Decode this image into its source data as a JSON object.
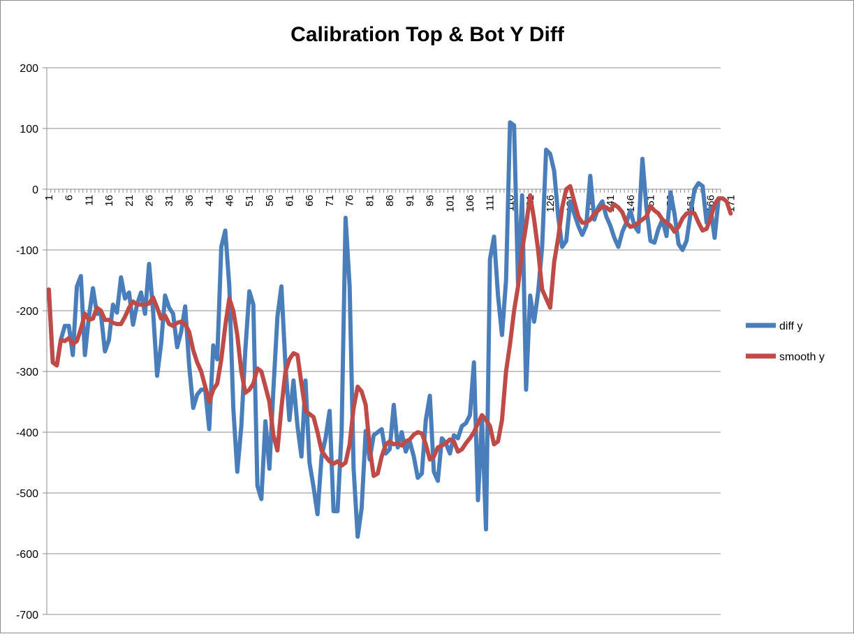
{
  "chart_data": {
    "type": "line",
    "title": "Calibration Top & Bot Y Diff",
    "xlabel": "",
    "ylabel": "",
    "ylim": [
      -700,
      200
    ],
    "ytick_step": 100,
    "grid": "horizontal",
    "legend_position": "right",
    "x_tick_labels": [
      "1",
      "6",
      "11",
      "16",
      "21",
      "26",
      "31",
      "36",
      "41",
      "46",
      "51",
      "56",
      "61",
      "66",
      "71",
      "76",
      "81",
      "86",
      "91",
      "96",
      "101",
      "106",
      "111",
      "116",
      "121",
      "126",
      "131",
      "136",
      "141",
      "146",
      "151",
      "156",
      "161",
      "166",
      "171"
    ],
    "series": [
      {
        "name": "diff y",
        "color": "#4a7ebb",
        "values": [
          -165,
          -285,
          -290,
          -248,
          -225,
          -225,
          -273,
          -160,
          -143,
          -273,
          -210,
          -163,
          -205,
          -205,
          -267,
          -248,
          -190,
          -203,
          -145,
          -180,
          -170,
          -223,
          -190,
          -170,
          -205,
          -123,
          -200,
          -307,
          -255,
          -175,
          -195,
          -205,
          -260,
          -235,
          -193,
          -290,
          -360,
          -338,
          -330,
          -330,
          -395,
          -257,
          -280,
          -95,
          -68,
          -160,
          -360,
          -465,
          -390,
          -265,
          -168,
          -190,
          -488,
          -510,
          -382,
          -460,
          -330,
          -210,
          -160,
          -290,
          -380,
          -315,
          -390,
          -440,
          -315,
          -450,
          -490,
          -535,
          -440,
          -410,
          -365,
          -530,
          -530,
          -400,
          -47,
          -160,
          -460,
          -572,
          -525,
          -398,
          -445,
          -405,
          -400,
          -395,
          -435,
          -428,
          -355,
          -425,
          -400,
          -432,
          -415,
          -440,
          -475,
          -468,
          -380,
          -340,
          -465,
          -480,
          -410,
          -418,
          -435,
          -405,
          -410,
          -390,
          -385,
          -372,
          -285,
          -512,
          -375,
          -560,
          -115,
          -78,
          -175,
          -240,
          -150,
          110,
          105,
          -155,
          -10,
          -330,
          -175,
          -218,
          -170,
          -95,
          65,
          58,
          30,
          -45,
          -95,
          -85,
          -20,
          -40,
          -60,
          -75,
          -60,
          22,
          -50,
          -30,
          -20,
          -45,
          -60,
          -80,
          -95,
          -70,
          -55,
          -35,
          -60,
          -70,
          50,
          -30,
          -85,
          -88,
          -65,
          -50,
          -77,
          -5,
          -40,
          -90,
          -100,
          -85,
          -40,
          0,
          10,
          5,
          -55,
          -30,
          -80,
          -15
        ]
      },
      {
        "name": "smooth y",
        "color": "#be4b48",
        "values": [
          -165,
          -285,
          -290,
          -248,
          -250,
          -245,
          -255,
          -250,
          -230,
          -205,
          -215,
          -213,
          -195,
          -200,
          -215,
          -215,
          -220,
          -222,
          -222,
          -210,
          -195,
          -185,
          -190,
          -190,
          -190,
          -188,
          -178,
          -195,
          -213,
          -208,
          -222,
          -225,
          -220,
          -218,
          -222,
          -235,
          -265,
          -285,
          -300,
          -325,
          -350,
          -330,
          -320,
          -280,
          -225,
          -180,
          -200,
          -240,
          -300,
          -335,
          -330,
          -320,
          -295,
          -300,
          -325,
          -350,
          -405,
          -430,
          -360,
          -300,
          -280,
          -270,
          -273,
          -320,
          -365,
          -370,
          -375,
          -400,
          -430,
          -440,
          -448,
          -452,
          -448,
          -455,
          -450,
          -420,
          -360,
          -325,
          -333,
          -355,
          -425,
          -472,
          -468,
          -440,
          -420,
          -415,
          -420,
          -418,
          -422,
          -415,
          -412,
          -404,
          -400,
          -402,
          -420,
          -445,
          -440,
          -425,
          -422,
          -418,
          -412,
          -415,
          -432,
          -428,
          -418,
          -410,
          -400,
          -385,
          -372,
          -380,
          -390,
          -420,
          -415,
          -380,
          -300,
          -255,
          -200,
          -160,
          -100,
          -60,
          -10,
          -50,
          -100,
          -165,
          -180,
          -195,
          -120,
          -80,
          -30,
          0,
          5,
          -20,
          -45,
          -55,
          -55,
          -50,
          -40,
          -35,
          -28,
          -30,
          -35,
          -25,
          -30,
          -38,
          -55,
          -62,
          -60,
          -55,
          -50,
          -45,
          -28,
          -35,
          -40,
          -50,
          -55,
          -60,
          -70,
          -62,
          -48,
          -40,
          -38,
          -40,
          -55,
          -68,
          -65,
          -48,
          -25,
          -15,
          -15,
          -20,
          -40
        ]
      }
    ]
  }
}
